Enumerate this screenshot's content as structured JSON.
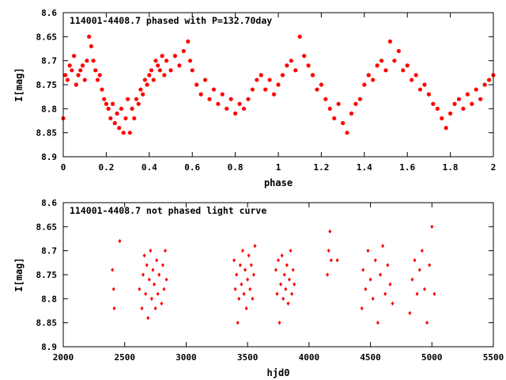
{
  "colors": {
    "points": "#ff0000",
    "axes": "#000000",
    "background": "#ffffff"
  },
  "chart_data": [
    {
      "type": "scatter",
      "title": "114001-4408.7 phased with P=132.70day",
      "xlabel": "phase",
      "ylabel": "I[mag]",
      "xlim": [
        0,
        2
      ],
      "ylim": [
        8.6,
        8.9
      ],
      "y_inverted": true,
      "grid": false,
      "legend": "none",
      "marker": "filled-circle",
      "x_ticks": [
        0,
        0.2,
        0.4,
        0.6,
        0.8,
        1,
        1.2,
        1.4,
        1.6,
        1.8,
        2
      ],
      "x_tick_labels": [
        "0",
        "0.2",
        "0.4",
        "0.6",
        "0.8",
        "1",
        "1.2",
        "1.4",
        "1.6",
        "1.8",
        "2"
      ],
      "y_ticks": [
        8.6,
        8.65,
        8.7,
        8.75,
        8.8,
        8.85,
        8.9
      ],
      "y_tick_labels": [
        "8.6",
        "8.65",
        "8.7",
        "8.75",
        "8.8",
        "8.85",
        "8.9"
      ],
      "points": [
        [
          0.0,
          8.82
        ],
        [
          0.01,
          8.73
        ],
        [
          0.02,
          8.74
        ],
        [
          0.03,
          8.71
        ],
        [
          0.04,
          8.72
        ],
        [
          0.05,
          8.69
        ],
        [
          0.06,
          8.75
        ],
        [
          0.07,
          8.73
        ],
        [
          0.08,
          8.72
        ],
        [
          0.09,
          8.71
        ],
        [
          0.1,
          8.74
        ],
        [
          0.11,
          8.7
        ],
        [
          0.12,
          8.65
        ],
        [
          0.13,
          8.67
        ],
        [
          0.14,
          8.7
        ],
        [
          0.15,
          8.72
        ],
        [
          0.16,
          8.74
        ],
        [
          0.17,
          8.73
        ],
        [
          0.18,
          8.76
        ],
        [
          0.19,
          8.78
        ],
        [
          0.2,
          8.79
        ],
        [
          0.21,
          8.8
        ],
        [
          0.22,
          8.82
        ],
        [
          0.23,
          8.79
        ],
        [
          0.24,
          8.83
        ],
        [
          0.25,
          8.81
        ],
        [
          0.26,
          8.84
        ],
        [
          0.27,
          8.8
        ],
        [
          0.28,
          8.85
        ],
        [
          0.29,
          8.82
        ],
        [
          0.3,
          8.78
        ],
        [
          0.31,
          8.85
        ],
        [
          0.32,
          8.8
        ],
        [
          0.33,
          8.82
        ],
        [
          0.34,
          8.78
        ],
        [
          0.35,
          8.79
        ],
        [
          0.36,
          8.76
        ],
        [
          0.37,
          8.77
        ],
        [
          0.38,
          8.74
        ],
        [
          0.39,
          8.75
        ],
        [
          0.4,
          8.73
        ],
        [
          0.41,
          8.72
        ],
        [
          0.42,
          8.74
        ],
        [
          0.43,
          8.7
        ],
        [
          0.44,
          8.71
        ],
        [
          0.45,
          8.72
        ],
        [
          0.46,
          8.69
        ],
        [
          0.47,
          8.73
        ],
        [
          0.48,
          8.7
        ],
        [
          0.5,
          8.72
        ],
        [
          0.52,
          8.69
        ],
        [
          0.54,
          8.71
        ],
        [
          0.56,
          8.68
        ],
        [
          0.58,
          8.66
        ],
        [
          0.59,
          8.7
        ],
        [
          0.6,
          8.72
        ],
        [
          0.62,
          8.75
        ],
        [
          0.64,
          8.77
        ],
        [
          0.66,
          8.74
        ],
        [
          0.68,
          8.78
        ],
        [
          0.7,
          8.76
        ],
        [
          0.72,
          8.79
        ],
        [
          0.74,
          8.77
        ],
        [
          0.76,
          8.8
        ],
        [
          0.78,
          8.78
        ],
        [
          0.8,
          8.81
        ],
        [
          0.82,
          8.79
        ],
        [
          0.84,
          8.8
        ],
        [
          0.86,
          8.78
        ],
        [
          0.88,
          8.76
        ],
        [
          0.9,
          8.74
        ],
        [
          0.92,
          8.73
        ],
        [
          0.94,
          8.76
        ],
        [
          0.96,
          8.74
        ],
        [
          0.98,
          8.77
        ],
        [
          1.0,
          8.75
        ],
        [
          1.02,
          8.73
        ],
        [
          1.04,
          8.71
        ],
        [
          1.06,
          8.7
        ],
        [
          1.08,
          8.72
        ],
        [
          1.1,
          8.65
        ],
        [
          1.12,
          8.69
        ],
        [
          1.14,
          8.71
        ],
        [
          1.16,
          8.73
        ],
        [
          1.18,
          8.76
        ],
        [
          1.2,
          8.75
        ],
        [
          1.22,
          8.78
        ],
        [
          1.24,
          8.8
        ],
        [
          1.26,
          8.82
        ],
        [
          1.28,
          8.79
        ],
        [
          1.3,
          8.83
        ],
        [
          1.32,
          8.85
        ],
        [
          1.34,
          8.81
        ],
        [
          1.36,
          8.79
        ],
        [
          1.38,
          8.78
        ],
        [
          1.4,
          8.75
        ],
        [
          1.42,
          8.73
        ],
        [
          1.44,
          8.74
        ],
        [
          1.46,
          8.71
        ],
        [
          1.48,
          8.7
        ],
        [
          1.5,
          8.72
        ],
        [
          1.52,
          8.66
        ],
        [
          1.54,
          8.7
        ],
        [
          1.56,
          8.68
        ],
        [
          1.58,
          8.72
        ],
        [
          1.6,
          8.71
        ],
        [
          1.62,
          8.74
        ],
        [
          1.64,
          8.73
        ],
        [
          1.66,
          8.76
        ],
        [
          1.68,
          8.75
        ],
        [
          1.7,
          8.77
        ],
        [
          1.72,
          8.79
        ],
        [
          1.74,
          8.8
        ],
        [
          1.76,
          8.82
        ],
        [
          1.78,
          8.84
        ],
        [
          1.8,
          8.81
        ],
        [
          1.82,
          8.79
        ],
        [
          1.84,
          8.78
        ],
        [
          1.86,
          8.8
        ],
        [
          1.88,
          8.77
        ],
        [
          1.9,
          8.79
        ],
        [
          1.92,
          8.76
        ],
        [
          1.94,
          8.78
        ],
        [
          1.96,
          8.75
        ],
        [
          1.98,
          8.74
        ],
        [
          2.0,
          8.73
        ]
      ]
    },
    {
      "type": "scatter",
      "title": "114001-4408.7 not phased light curve",
      "xlabel": "hjd0",
      "ylabel": "I[mag]",
      "xlim": [
        2000,
        5500
      ],
      "ylim": [
        8.6,
        8.9
      ],
      "y_inverted": true,
      "grid": false,
      "legend": "none",
      "marker": "diamond",
      "x_ticks": [
        2000,
        2500,
        3000,
        3500,
        4000,
        4500,
        5000,
        5500
      ],
      "x_tick_labels": [
        "2000",
        "2500",
        "3000",
        "3500",
        "4000",
        "4500",
        "5000",
        "5500"
      ],
      "y_ticks": [
        8.6,
        8.65,
        8.7,
        8.75,
        8.8,
        8.85,
        8.9
      ],
      "y_tick_labels": [
        "8.6",
        "8.65",
        "8.7",
        "8.75",
        "8.8",
        "8.85",
        "8.9"
      ],
      "points": [
        [
          2400,
          8.74
        ],
        [
          2410,
          8.78
        ],
        [
          2415,
          8.82
        ],
        [
          2460,
          8.68
        ],
        [
          2620,
          8.78
        ],
        [
          2640,
          8.82
        ],
        [
          2650,
          8.75
        ],
        [
          2660,
          8.71
        ],
        [
          2670,
          8.79
        ],
        [
          2680,
          8.73
        ],
        [
          2690,
          8.84
        ],
        [
          2700,
          8.76
        ],
        [
          2710,
          8.7
        ],
        [
          2720,
          8.8
        ],
        [
          2730,
          8.74
        ],
        [
          2740,
          8.77
        ],
        [
          2750,
          8.82
        ],
        [
          2760,
          8.72
        ],
        [
          2770,
          8.79
        ],
        [
          2780,
          8.75
        ],
        [
          2800,
          8.81
        ],
        [
          2810,
          8.73
        ],
        [
          2820,
          8.78
        ],
        [
          2830,
          8.7
        ],
        [
          2840,
          8.76
        ],
        [
          3390,
          8.72
        ],
        [
          3400,
          8.78
        ],
        [
          3410,
          8.75
        ],
        [
          3420,
          8.85
        ],
        [
          3430,
          8.8
        ],
        [
          3440,
          8.73
        ],
        [
          3450,
          8.77
        ],
        [
          3460,
          8.7
        ],
        [
          3470,
          8.79
        ],
        [
          3480,
          8.74
        ],
        [
          3490,
          8.82
        ],
        [
          3500,
          8.76
        ],
        [
          3510,
          8.71
        ],
        [
          3520,
          8.78
        ],
        [
          3530,
          8.73
        ],
        [
          3540,
          8.8
        ],
        [
          3550,
          8.75
        ],
        [
          3560,
          8.69
        ],
        [
          3730,
          8.74
        ],
        [
          3740,
          8.79
        ],
        [
          3750,
          8.72
        ],
        [
          3760,
          8.85
        ],
        [
          3770,
          8.77
        ],
        [
          3780,
          8.71
        ],
        [
          3790,
          8.8
        ],
        [
          3800,
          8.75
        ],
        [
          3810,
          8.78
        ],
        [
          3820,
          8.73
        ],
        [
          3830,
          8.81
        ],
        [
          3840,
          8.76
        ],
        [
          3850,
          8.7
        ],
        [
          3860,
          8.79
        ],
        [
          3870,
          8.74
        ],
        [
          3880,
          8.77
        ],
        [
          4150,
          8.75
        ],
        [
          4160,
          8.7
        ],
        [
          4170,
          8.66
        ],
        [
          4180,
          8.72
        ],
        [
          4230,
          8.72
        ],
        [
          4430,
          8.82
        ],
        [
          4440,
          8.74
        ],
        [
          4460,
          8.78
        ],
        [
          4480,
          8.7
        ],
        [
          4500,
          8.76
        ],
        [
          4520,
          8.8
        ],
        [
          4540,
          8.72
        ],
        [
          4560,
          8.85
        ],
        [
          4580,
          8.75
        ],
        [
          4600,
          8.69
        ],
        [
          4620,
          8.79
        ],
        [
          4640,
          8.73
        ],
        [
          4660,
          8.77
        ],
        [
          4680,
          8.81
        ],
        [
          4820,
          8.83
        ],
        [
          4840,
          8.76
        ],
        [
          4860,
          8.72
        ],
        [
          4880,
          8.79
        ],
        [
          4900,
          8.74
        ],
        [
          4920,
          8.7
        ],
        [
          4940,
          8.78
        ],
        [
          4960,
          8.85
        ],
        [
          4980,
          8.73
        ],
        [
          5000,
          8.65
        ],
        [
          5020,
          8.79
        ]
      ]
    }
  ]
}
